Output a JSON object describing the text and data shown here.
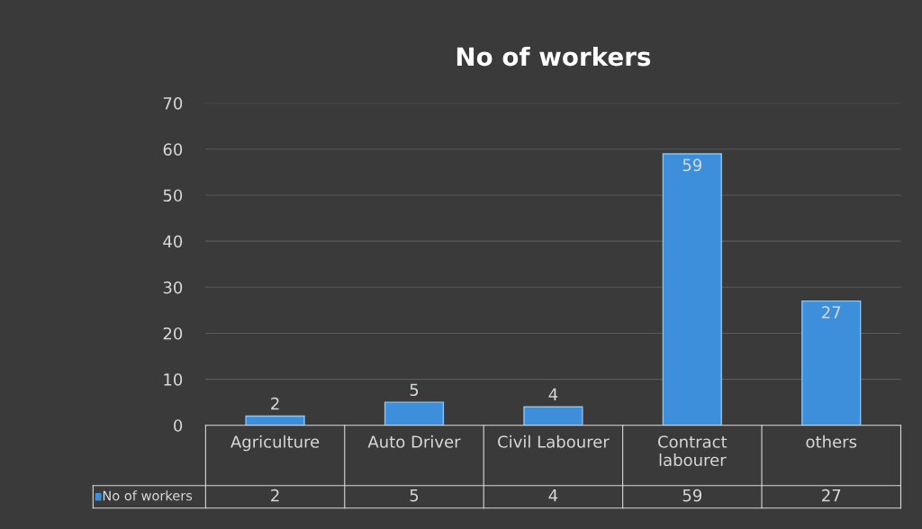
{
  "chart_data": {
    "type": "bar",
    "title": "No of workers",
    "categories": [
      "Agriculture",
      "Auto Driver",
      "Civil Labourer",
      "Contract\nlabourer",
      "others"
    ],
    "series": [
      {
        "name": "No of workers",
        "color": "#3d8fdb",
        "values": [
          2,
          5,
          4,
          59,
          27
        ],
        "value_labels": [
          "2",
          "5",
          "4",
          "59",
          "27"
        ]
      }
    ],
    "annotations": [
      "2",
      "5",
      "4",
      "59",
      "27"
    ],
    "ylim": [
      0,
      70
    ],
    "yticks": [
      0,
      10,
      20,
      30,
      40,
      50,
      60,
      70
    ],
    "grid": "y",
    "data_labels": true,
    "legend": "bottom"
  }
}
